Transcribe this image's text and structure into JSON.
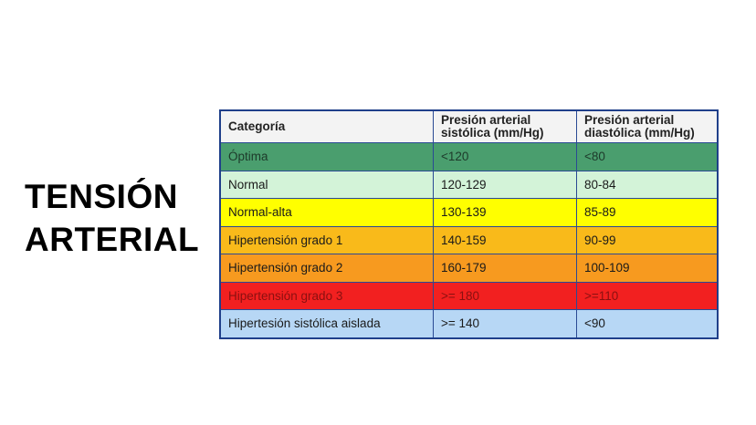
{
  "title": {
    "line1": "TENSIÓN",
    "line2": "ARTERIAL"
  },
  "table": {
    "headers": {
      "category": "Categoría",
      "systolic_line1": "Presión arterial",
      "systolic_line2": "sistólica (mm/Hg)",
      "diastolic_line1": "Presión arterial",
      "diastolic_line2": "diastólica (mm/Hg)"
    },
    "rows": [
      {
        "category": "Óptima",
        "systolic": "<120",
        "diastolic": "<80",
        "color": "#4a9e6e"
      },
      {
        "category": "Normal",
        "systolic": "120-129",
        "diastolic": "80-84",
        "color": "#d3f3d8"
      },
      {
        "category": "Normal-alta",
        "systolic": "130-139",
        "diastolic": "85-89",
        "color": "#ffff00"
      },
      {
        "category": "Hipertensión grado 1",
        "systolic": "140-159",
        "diastolic": "90-99",
        "color": "#f9ba1a"
      },
      {
        "category": "Hipertensión grado 2",
        "systolic": "160-179",
        "diastolic": "100-109",
        "color": "#f79a1f"
      },
      {
        "category": "Hipertensión grado 3",
        "systolic": ">= 180",
        "diastolic": ">=110",
        "color": "#f22020"
      },
      {
        "category": "Hipertesión sistólica aislada",
        "systolic": ">= 140",
        "diastolic": "<90",
        "color": "#b7d7f5"
      }
    ]
  }
}
